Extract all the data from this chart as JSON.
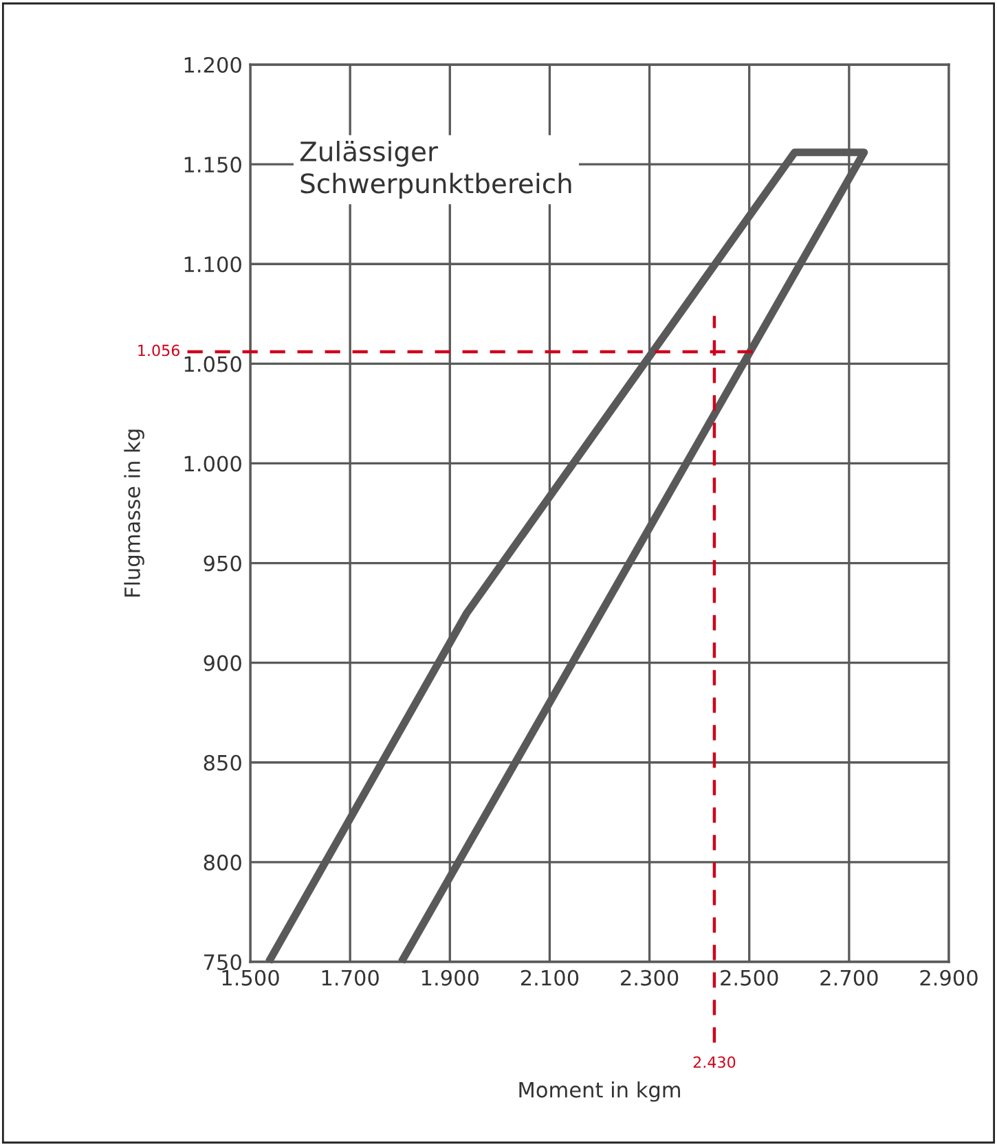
{
  "chart_data": {
    "type": "line",
    "xlabel": "Moment in kgm",
    "ylabel": "Flugmasse in kg",
    "x": [
      1537,
      1934,
      2591,
      2730,
      1803
    ],
    "series": [
      {
        "color": "#595959",
        "values": [
          750,
          925,
          1156,
          1156,
          750
        ]
      }
    ],
    "xlim": [
      1500,
      2900
    ],
    "ylim": [
      750,
      1200
    ],
    "xticks": [
      {
        "value": 1500,
        "label": "1.500"
      },
      {
        "value": 1700,
        "label": "1.700"
      },
      {
        "value": 1900,
        "label": "1.900"
      },
      {
        "value": 2100,
        "label": "2.100"
      },
      {
        "value": 2300,
        "label": "2.300"
      },
      {
        "value": 2500,
        "label": "2.500"
      },
      {
        "value": 2700,
        "label": "2.700"
      },
      {
        "value": 2900,
        "label": "2.900"
      }
    ],
    "yticks": [
      750,
      800,
      850,
      900,
      950,
      {
        "value": 1000,
        "label": "1.000"
      },
      {
        "value": 1050,
        "label": "1.050"
      },
      {
        "value": 1100,
        "label": "1.100"
      },
      {
        "value": 1150,
        "label": "1.150"
      },
      {
        "value": 1200,
        "label": "1.200"
      }
    ],
    "ref_lines": [
      {
        "axis": "y",
        "value": 1056,
        "label": "1.056",
        "color": "#d0021b",
        "line_style": "dashed"
      },
      {
        "axis": "x",
        "value": 2430,
        "label": "2.430",
        "color": "#d0021b",
        "line_style": "dashed"
      }
    ],
    "annotations": [
      "Zulässiger\nSchwerpunktbereich"
    ],
    "grid": true,
    "line_style": "solid",
    "marker": "none"
  }
}
